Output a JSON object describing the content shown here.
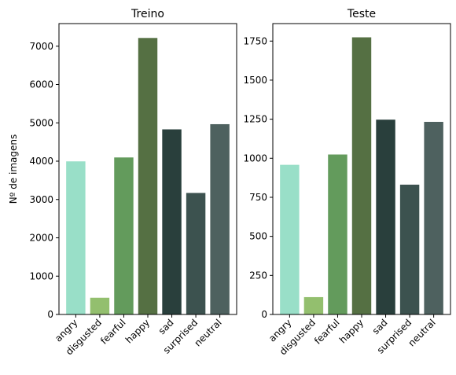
{
  "chart_data": [
    {
      "type": "bar",
      "title": "Treino",
      "xlabel": "",
      "ylabel": "Nº de imagens",
      "categories": [
        "angry",
        "disgusted",
        "fearful",
        "happy",
        "sad",
        "surprised",
        "neutral"
      ],
      "values": [
        3995,
        436,
        4097,
        7215,
        4830,
        3171,
        4965
      ],
      "colors": [
        "#99dfc8",
        "#93bf6e",
        "#639b5c",
        "#557043",
        "#293f3c",
        "#3c524f",
        "#4e615f"
      ],
      "ylim": [
        0,
        7590
      ],
      "yticks": [
        0,
        1000,
        2000,
        3000,
        4000,
        5000,
        6000,
        7000
      ],
      "grid": false,
      "legend": "none"
    },
    {
      "type": "bar",
      "title": "Teste",
      "xlabel": "",
      "ylabel": "",
      "categories": [
        "angry",
        "disgusted",
        "fearful",
        "happy",
        "sad",
        "surprised",
        "neutral"
      ],
      "values": [
        958,
        111,
        1024,
        1774,
        1247,
        831,
        1233
      ],
      "colors": [
        "#99dfc8",
        "#93bf6e",
        "#639b5c",
        "#557043",
        "#293f3c",
        "#3c524f",
        "#4e615f"
      ],
      "ylim": [
        0,
        1862
      ],
      "yticks": [
        "0",
        "250",
        "500",
        "750",
        "1000",
        "1250",
        "1500",
        "1750"
      ],
      "yticklabels": [
        "0",
        "250",
        "500",
        "750",
        "1000",
        "1250",
        "1500",
        "1750"
      ],
      "grid": false,
      "legend": "none"
    }
  ]
}
